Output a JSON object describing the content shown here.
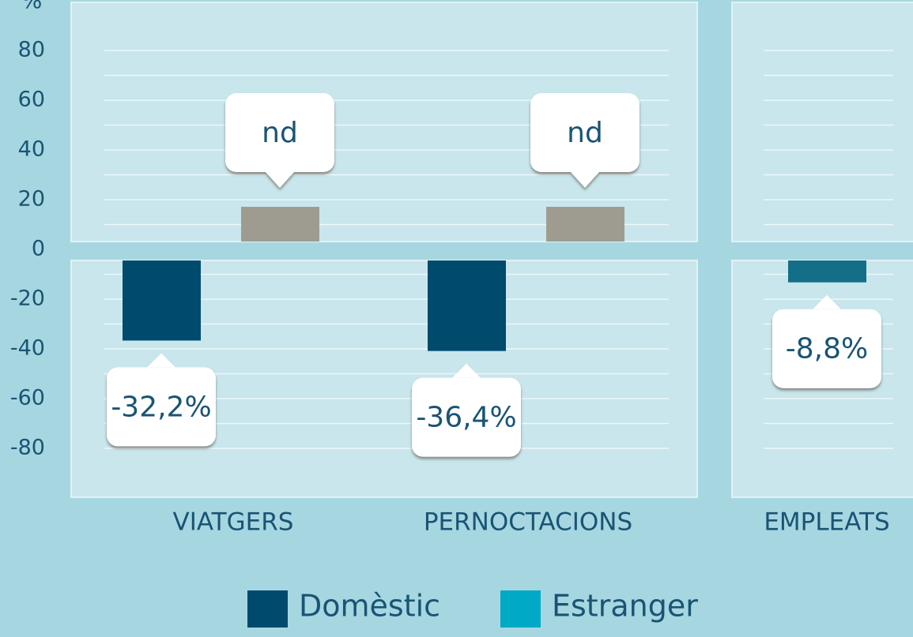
{
  "chart_data": {
    "type": "bar",
    "y_label": "%",
    "categories": [
      "VIATGERS",
      "PERNOCTACIONS",
      "EMPLEATS"
    ],
    "series": [
      {
        "name": "Domèstic",
        "color": "#004a6e",
        "values": [
          -32.2,
          -36.4,
          -8.8
        ],
        "value_labels": [
          "-32,2%",
          "-36,4%",
          "-8,8%"
        ]
      },
      {
        "name": "Estranger",
        "color": "#00a9c6",
        "values": [
          null,
          null,
          null
        ],
        "value_labels": [
          "nd",
          "nd",
          null
        ]
      }
    ],
    "ylim": [
      -100,
      100
    ],
    "yticks": [
      -80,
      -60,
      -40,
      -20,
      0,
      20,
      40,
      60,
      80
    ],
    "grid": true
  }
}
